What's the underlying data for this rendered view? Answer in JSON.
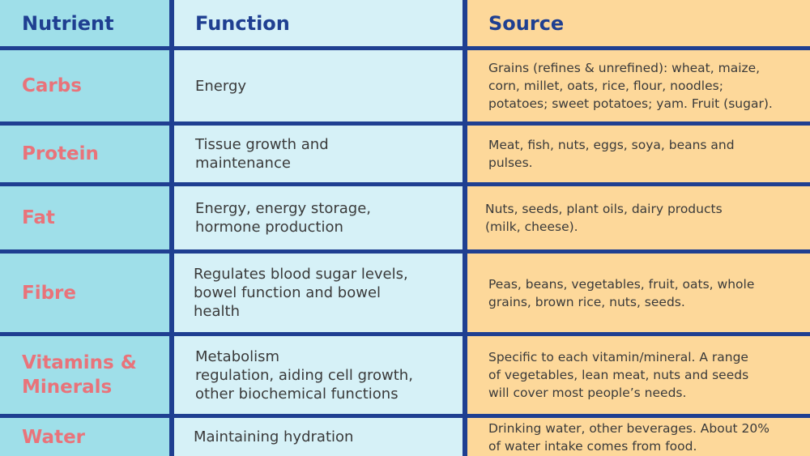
{
  "headers": {
    "nutrient": "Nutrient",
    "function": "Function",
    "source": "Source"
  },
  "rows": [
    {
      "nutrient": [
        "Carbs"
      ],
      "function": [
        "Energy"
      ],
      "source": [
        "Grains (refines & unrefined): wheat, maize,",
        "corn, millet, oats, rice, flour, noodles;",
        "potatoes; sweet potatoes; yam. Fruit (sugar)."
      ]
    },
    {
      "nutrient": [
        "Protein"
      ],
      "function": [
        "Tissue growth and",
        "maintenance"
      ],
      "source": [
        "Meat, fish, nuts, eggs, soya, beans and",
        "pulses."
      ]
    },
    {
      "nutrient": [
        "Fat"
      ],
      "function": [
        "Energy, energy storage,",
        "hormone production"
      ],
      "source": [
        "Nuts, seeds, plant oils, dairy products",
        "(milk, cheese)."
      ]
    },
    {
      "nutrient": [
        "Fibre"
      ],
      "function": [
        "Regulates blood sugar levels,",
        "bowel function and bowel",
        "health"
      ],
      "source": [
        "Peas, beans, vegetables, fruit, oats, whole",
        "grains, brown rice, nuts, seeds."
      ]
    },
    {
      "nutrient": [
        "Vitamins &",
        "Minerals"
      ],
      "function": [
        "Metabolism",
        "regulation, aiding cell growth,",
        "other biochemical functions"
      ],
      "source": [
        "Specific to each vitamin/mineral. A range",
        "of vegetables, lean meat, nuts and seeds",
        "will cover most people’s needs."
      ]
    },
    {
      "nutrient": [
        "Water"
      ],
      "function": [
        "Maintaining hydration"
      ],
      "source": [
        "Drinking water, other beverages. About 20%",
        "of water intake comes from food."
      ]
    }
  ]
}
